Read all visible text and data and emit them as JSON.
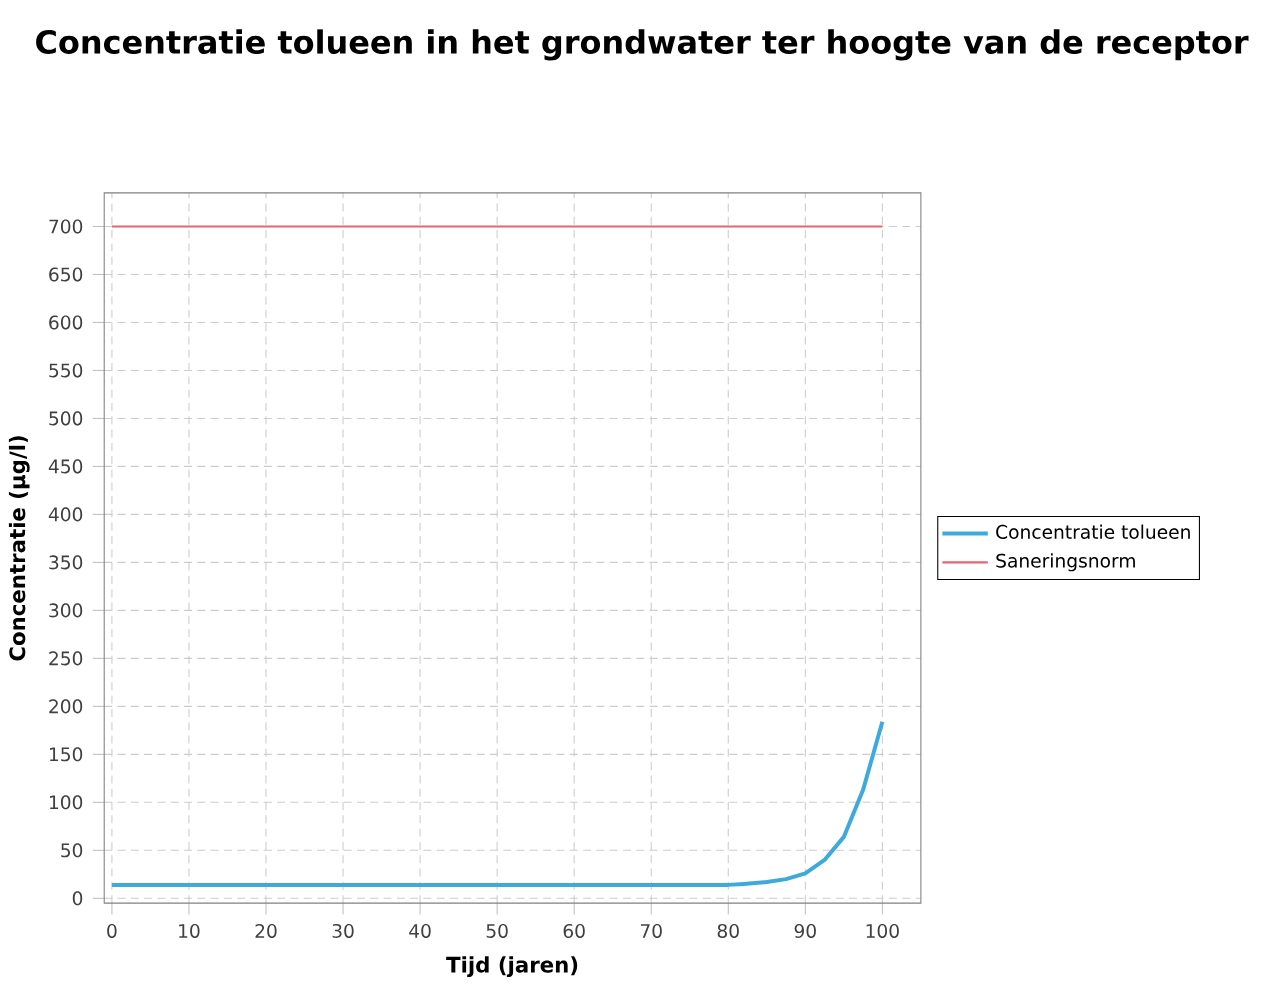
{
  "chart_data": {
    "type": "line",
    "title": "Concentratie tolueen in het grondwater ter hoogte van de receptor",
    "xlabel": "Tijd (jaren)",
    "ylabel": "Concentratie (µg/l)",
    "xlim": [
      -1,
      105
    ],
    "ylim": [
      -5,
      735
    ],
    "xticks": [
      0,
      10,
      20,
      30,
      40,
      50,
      60,
      70,
      80,
      90,
      100
    ],
    "yticks": [
      0,
      50,
      100,
      150,
      200,
      250,
      300,
      350,
      400,
      450,
      500,
      550,
      600,
      650,
      700
    ],
    "grid": true,
    "legend": "right",
    "series": [
      {
        "name": "Concentratie tolueen",
        "color": "#3fa9dc",
        "x": [
          0,
          10,
          20,
          30,
          40,
          50,
          60,
          70,
          80,
          82,
          85,
          87.5,
          90,
          92.5,
          95,
          97.5,
          100
        ],
        "values": [
          14,
          14,
          14,
          14,
          14,
          14,
          14,
          14,
          14,
          15,
          17,
          20,
          26,
          40,
          64,
          113,
          184
        ]
      },
      {
        "name": "Saneringsnorm",
        "color": "#e8646e",
        "x": [
          0,
          100
        ],
        "values": [
          700,
          700
        ]
      }
    ]
  }
}
